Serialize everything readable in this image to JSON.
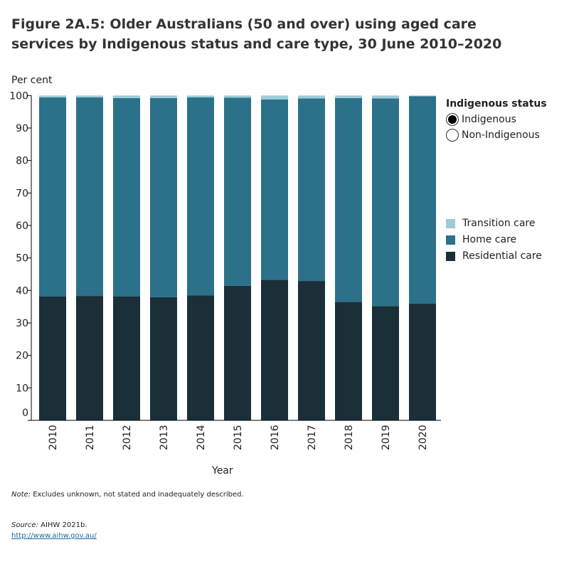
{
  "title": "Figure 2A.5: Older Australians (50 and over) using aged care services by Indigenous status and care type, 30 June 2010–2020",
  "filter": {
    "title": "Indigenous status",
    "options": [
      {
        "label": "Indigenous",
        "selected": true
      },
      {
        "label": "Non-Indigenous",
        "selected": false
      }
    ]
  },
  "note_label": "Note:",
  "note": " Excludes unknown, not stated and inadequately described.",
  "source_label": "Source:",
  "source": " AIHW 2021b.",
  "link": "http://www.aihw.gov.au/",
  "chart_data": {
    "type": "bar",
    "stacked": true,
    "xlabel": "Year",
    "ylabel": "Per cent",
    "ylim": [
      0,
      100
    ],
    "yticks": [
      0,
      10,
      20,
      30,
      40,
      50,
      60,
      70,
      80,
      90,
      100
    ],
    "categories": [
      "2010",
      "2011",
      "2012",
      "2013",
      "2014",
      "2015",
      "2016",
      "2017",
      "2018",
      "2019",
      "2020"
    ],
    "legend_position": "right",
    "series": [
      {
        "name": "Residential care",
        "color": "#1a2f38",
        "values": [
          38.1,
          38.3,
          38.1,
          37.9,
          38.5,
          41.4,
          43.3,
          42.9,
          36.5,
          35.2,
          35.9
        ]
      },
      {
        "name": "Home care",
        "color": "#2b7189",
        "values": [
          61.3,
          61.1,
          61.1,
          61.3,
          60.9,
          57.9,
          55.5,
          56.2,
          62.7,
          63.9,
          63.9
        ]
      },
      {
        "name": "Transition care",
        "color": "#9ecbd8",
        "values": [
          0.6,
          0.6,
          0.8,
          0.8,
          0.6,
          0.7,
          1.2,
          0.9,
          0.8,
          0.9,
          0.2
        ]
      }
    ]
  }
}
